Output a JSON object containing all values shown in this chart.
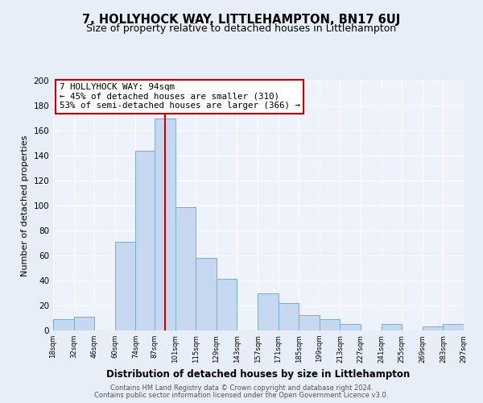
{
  "title": "7, HOLLYHOCK WAY, LITTLEHAMPTON, BN17 6UJ",
  "subtitle": "Size of property relative to detached houses in Littlehampton",
  "xlabel": "Distribution of detached houses by size in Littlehampton",
  "ylabel": "Number of detached properties",
  "bin_edges": [
    18,
    32,
    46,
    60,
    74,
    87,
    101,
    115,
    129,
    143,
    157,
    171,
    185,
    199,
    213,
    227,
    241,
    255,
    269,
    283,
    297
  ],
  "bar_heights": [
    9,
    11,
    0,
    71,
    144,
    170,
    99,
    58,
    41,
    0,
    30,
    22,
    12,
    9,
    5,
    0,
    5,
    0,
    3,
    5
  ],
  "bar_color": "#c5d8f0",
  "bar_edge_color": "#7aadd4",
  "vline_x": 94,
  "vline_color": "#cc0000",
  "annotation_title": "7 HOLLYHOCK WAY: 94sqm",
  "annotation_line1": "← 45% of detached houses are smaller (310)",
  "annotation_line2": "53% of semi-detached houses are larger (366) →",
  "annotation_box_color": "#ffffff",
  "annotation_box_edge": "#cc0000",
  "ylim": [
    0,
    200
  ],
  "yticks": [
    0,
    20,
    40,
    60,
    80,
    100,
    120,
    140,
    160,
    180,
    200
  ],
  "xtick_labels": [
    "18sqm",
    "32sqm",
    "46sqm",
    "60sqm",
    "74sqm",
    "87sqm",
    "101sqm",
    "115sqm",
    "129sqm",
    "143sqm",
    "157sqm",
    "171sqm",
    "185sqm",
    "199sqm",
    "213sqm",
    "227sqm",
    "241sqm",
    "255sqm",
    "269sqm",
    "283sqm",
    "297sqm"
  ],
  "footer_line1": "Contains HM Land Registry data © Crown copyright and database right 2024.",
  "footer_line2": "Contains public sector information licensed under the Open Government Licence v3.0.",
  "bg_color": "#e8eef8",
  "plot_bg_color": "#eef3fb",
  "title_fontsize": 10.5,
  "subtitle_fontsize": 9,
  "ylabel_fontsize": 8,
  "xlabel_fontsize": 8.5
}
